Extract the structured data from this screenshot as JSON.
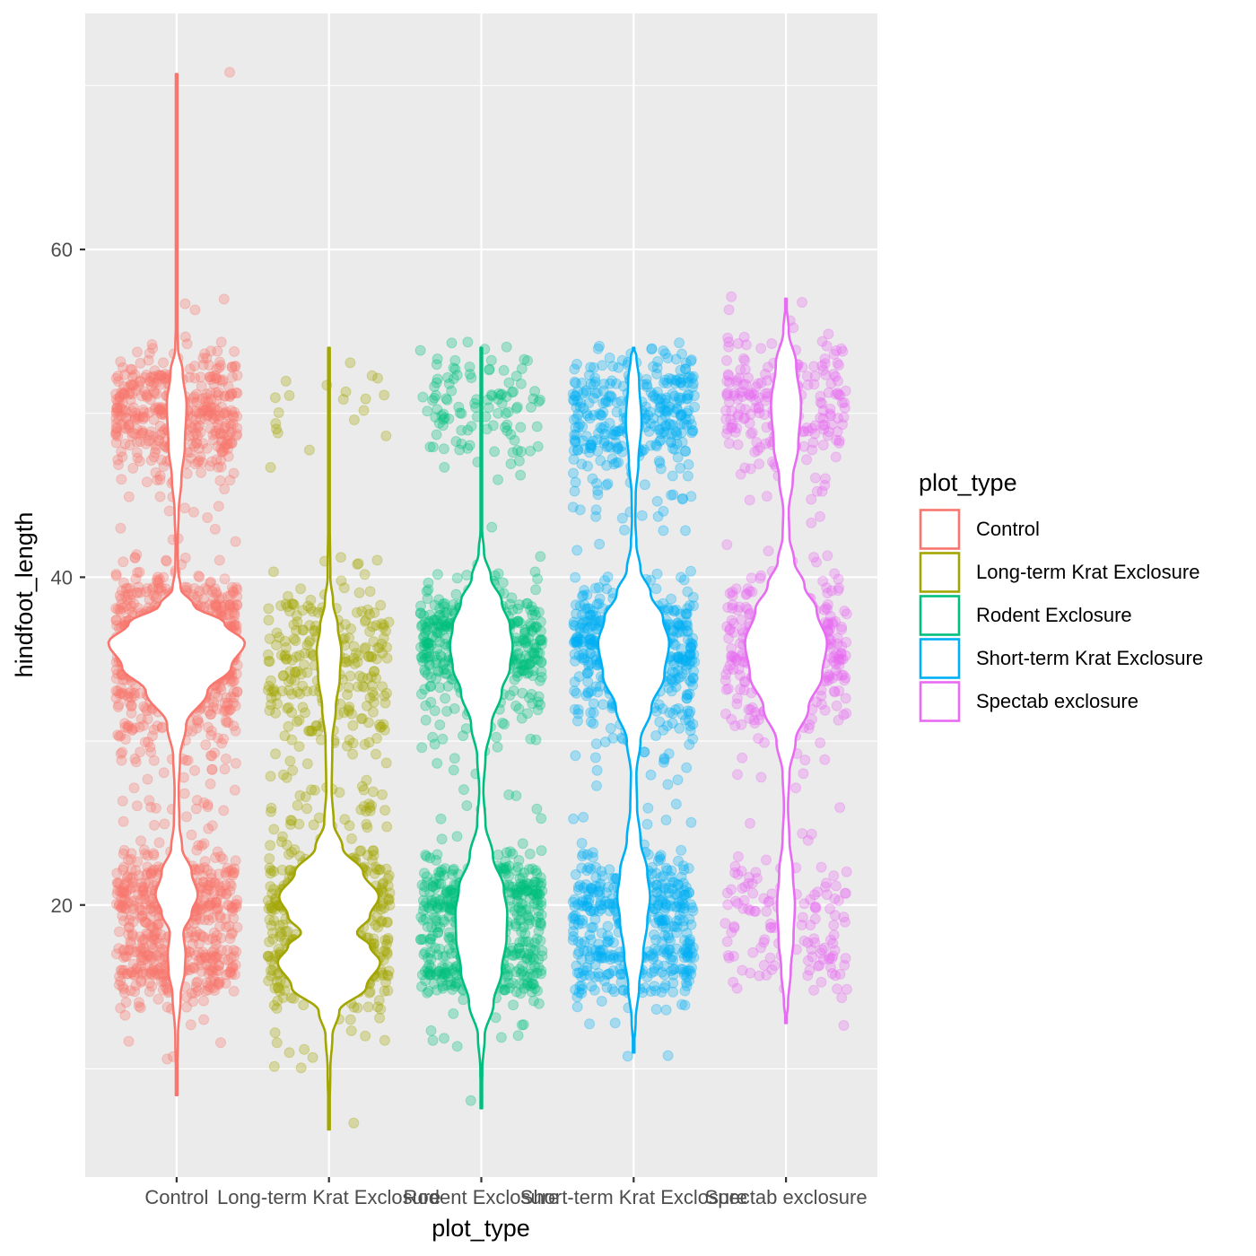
{
  "chart_data": {
    "type": "violin",
    "title": "",
    "xlabel": "plot_type",
    "ylabel": "hindfoot_length",
    "ylim": [
      3.4,
      74.4
    ],
    "yticks": [
      20,
      40,
      60
    ],
    "ytick_labels": [
      "20",
      "40",
      "60"
    ],
    "y_minor_gridlines": [
      10,
      30,
      50,
      70
    ],
    "grid": true,
    "background": "#EBEBEB",
    "categories": [
      "Control",
      "Long-term Krat Exclosure",
      "Rodent Exclosure",
      "Short-term Krat Exclosure",
      "Spectab exclosure"
    ],
    "legend": {
      "title": "plot_type",
      "placement": "right",
      "entries": [
        {
          "label": "Control",
          "color": "#F8766D"
        },
        {
          "label": "Long-term Krat Exclosure",
          "color": "#A3A500"
        },
        {
          "label": "Rodent Exclosure",
          "color": "#00BF7D"
        },
        {
          "label": "Short-term Krat Exclosure",
          "color": "#00B0F6"
        },
        {
          "label": "Spectab exclosure",
          "color": "#E76BF3"
        }
      ]
    },
    "series": [
      {
        "name": "Control",
        "color": "#F8766D",
        "min": 8.4,
        "max": 70.7,
        "density": [
          [
            8.4,
            0
          ],
          [
            12,
            0.02
          ],
          [
            14.5,
            0.06
          ],
          [
            16,
            0.12
          ],
          [
            17,
            0.13
          ],
          [
            18.3,
            0.1
          ],
          [
            19.5,
            0.22
          ],
          [
            20.6,
            0.31
          ],
          [
            22,
            0.22
          ],
          [
            23.5,
            0.08
          ],
          [
            25,
            0.04
          ],
          [
            27,
            0.03
          ],
          [
            29,
            0.05
          ],
          [
            31,
            0.14
          ],
          [
            33,
            0.45
          ],
          [
            34.5,
            0.8
          ],
          [
            36,
            1.0
          ],
          [
            37.2,
            0.7
          ],
          [
            38.3,
            0.25
          ],
          [
            39.3,
            0.06
          ],
          [
            40.5,
            0.02
          ],
          [
            42,
            0.015
          ],
          [
            44,
            0.03
          ],
          [
            46,
            0.07
          ],
          [
            48,
            0.12
          ],
          [
            50.5,
            0.145
          ],
          [
            52.5,
            0.09
          ],
          [
            54,
            0.02
          ],
          [
            55.5,
            0.01
          ],
          [
            60,
            0.005
          ],
          [
            70.7,
            0
          ]
        ],
        "points": [
          {
            "center": 50,
            "sd": 2.0,
            "n": 420
          },
          {
            "center": 36,
            "sd": 2.0,
            "n": 800
          },
          {
            "center": 32,
            "sd": 2.5,
            "n": 120
          },
          {
            "center": 20.5,
            "sd": 1.2,
            "n": 320
          },
          {
            "center": 16.5,
            "sd": 1.2,
            "n": 260
          },
          {
            "center": 27,
            "sd": 3.0,
            "n": 40
          },
          {
            "center": 44,
            "sd": 2.0,
            "n": 15
          },
          {
            "center": 12,
            "sd": 1.0,
            "n": 6
          },
          {
            "center": 70.7,
            "sd": 0.1,
            "n": 1
          },
          {
            "center": 57,
            "sd": 0.5,
            "n": 2
          }
        ]
      },
      {
        "name": "Long-term Krat Exclosure",
        "color": "#A3A500",
        "min": 6.3,
        "max": 54,
        "density": [
          [
            6.3,
            0
          ],
          [
            10,
            0.02
          ],
          [
            12,
            0.05
          ],
          [
            13.5,
            0.15
          ],
          [
            15,
            0.55
          ],
          [
            16.5,
            0.75
          ],
          [
            17.5,
            0.6
          ],
          [
            18.3,
            0.41
          ],
          [
            19.3,
            0.6
          ],
          [
            20.5,
            0.73
          ],
          [
            22,
            0.5
          ],
          [
            23.5,
            0.2
          ],
          [
            25,
            0.07
          ],
          [
            27,
            0.04
          ],
          [
            30,
            0.05
          ],
          [
            32,
            0.1
          ],
          [
            34,
            0.16
          ],
          [
            35.5,
            0.18
          ],
          [
            37,
            0.13
          ],
          [
            38.5,
            0.06
          ],
          [
            40,
            0.02
          ],
          [
            44,
            0.01
          ],
          [
            50,
            0.01
          ],
          [
            54,
            0
          ]
        ],
        "points": [
          {
            "center": 20.5,
            "sd": 1.2,
            "n": 260
          },
          {
            "center": 16.5,
            "sd": 1.2,
            "n": 300
          },
          {
            "center": 34.5,
            "sd": 2.5,
            "n": 260
          },
          {
            "center": 26,
            "sd": 2.5,
            "n": 60
          },
          {
            "center": 12,
            "sd": 1.2,
            "n": 14
          },
          {
            "center": 50,
            "sd": 2.0,
            "n": 20
          },
          {
            "center": 6.3,
            "sd": 0.1,
            "n": 1
          }
        ]
      },
      {
        "name": "Rodent Exclosure",
        "color": "#00BF7D",
        "min": 7.6,
        "max": 54,
        "density": [
          [
            7.6,
            0
          ],
          [
            10,
            0.015
          ],
          [
            12,
            0.05
          ],
          [
            14,
            0.18
          ],
          [
            16,
            0.3
          ],
          [
            18,
            0.37
          ],
          [
            19.5,
            0.38
          ],
          [
            21,
            0.33
          ],
          [
            23,
            0.17
          ],
          [
            25,
            0.06
          ],
          [
            27,
            0.03
          ],
          [
            29,
            0.06
          ],
          [
            31,
            0.15
          ],
          [
            33,
            0.3
          ],
          [
            34.5,
            0.42
          ],
          [
            35.8,
            0.46
          ],
          [
            37,
            0.42
          ],
          [
            38.5,
            0.3
          ],
          [
            40,
            0.14
          ],
          [
            41.5,
            0.04
          ],
          [
            43,
            0.01
          ],
          [
            46,
            0.005
          ],
          [
            54,
            0
          ]
        ],
        "points": [
          {
            "center": 36,
            "sd": 1.6,
            "n": 420
          },
          {
            "center": 20.5,
            "sd": 1.2,
            "n": 280
          },
          {
            "center": 16.5,
            "sd": 1.2,
            "n": 260
          },
          {
            "center": 50.5,
            "sd": 2.0,
            "n": 110
          },
          {
            "center": 31.5,
            "sd": 1.5,
            "n": 50
          },
          {
            "center": 12,
            "sd": 1.0,
            "n": 10
          },
          {
            "center": 26,
            "sd": 2.0,
            "n": 12
          },
          {
            "center": 7.6,
            "sd": 0.1,
            "n": 1
          }
        ]
      },
      {
        "name": "Short-term Krat Exclosure",
        "color": "#00B0F6",
        "min": 11,
        "max": 54,
        "density": [
          [
            11,
            0
          ],
          [
            13,
            0.03
          ],
          [
            15,
            0.08
          ],
          [
            17,
            0.14
          ],
          [
            19,
            0.2
          ],
          [
            20.5,
            0.24
          ],
          [
            22,
            0.2
          ],
          [
            24,
            0.1
          ],
          [
            26,
            0.05
          ],
          [
            28,
            0.04
          ],
          [
            30,
            0.1
          ],
          [
            32,
            0.26
          ],
          [
            34,
            0.45
          ],
          [
            36,
            0.52
          ],
          [
            37.5,
            0.43
          ],
          [
            39,
            0.25
          ],
          [
            40.5,
            0.1
          ],
          [
            42,
            0.04
          ],
          [
            43.5,
            0.025
          ],
          [
            45,
            0.03
          ],
          [
            47,
            0.07
          ],
          [
            49.5,
            0.115
          ],
          [
            52,
            0.08
          ],
          [
            53.5,
            0.04
          ],
          [
            54,
            0
          ]
        ],
        "points": [
          {
            "center": 36,
            "sd": 1.8,
            "n": 420
          },
          {
            "center": 32,
            "sd": 2.0,
            "n": 100
          },
          {
            "center": 50,
            "sd": 2.0,
            "n": 320
          },
          {
            "center": 20.5,
            "sd": 1.2,
            "n": 260
          },
          {
            "center": 16.5,
            "sd": 1.2,
            "n": 200
          },
          {
            "center": 44,
            "sd": 1.5,
            "n": 20
          },
          {
            "center": 25,
            "sd": 1.5,
            "n": 12
          },
          {
            "center": 11,
            "sd": 0.3,
            "n": 2
          }
        ]
      },
      {
        "name": "Spectab exclosure",
        "color": "#E76BF3",
        "min": 12.8,
        "max": 57,
        "density": [
          [
            12.8,
            0
          ],
          [
            14,
            0.03
          ],
          [
            16,
            0.07
          ],
          [
            18,
            0.11
          ],
          [
            20,
            0.13
          ],
          [
            22,
            0.1
          ],
          [
            24,
            0.05
          ],
          [
            26,
            0.03
          ],
          [
            28,
            0.05
          ],
          [
            30,
            0.14
          ],
          [
            32,
            0.33
          ],
          [
            34,
            0.53
          ],
          [
            36,
            0.6
          ],
          [
            38,
            0.45
          ],
          [
            39.5,
            0.27
          ],
          [
            41,
            0.12
          ],
          [
            42.5,
            0.05
          ],
          [
            44,
            0.04
          ],
          [
            46,
            0.1
          ],
          [
            48,
            0.18
          ],
          [
            50.5,
            0.22
          ],
          [
            53,
            0.15
          ],
          [
            55,
            0.04
          ],
          [
            57,
            0
          ]
        ],
        "points": [
          {
            "center": 36,
            "sd": 1.8,
            "n": 300
          },
          {
            "center": 32,
            "sd": 2.0,
            "n": 60
          },
          {
            "center": 50.5,
            "sd": 2.2,
            "n": 240
          },
          {
            "center": 20.5,
            "sd": 1.5,
            "n": 80
          },
          {
            "center": 16.5,
            "sd": 1.5,
            "n": 60
          },
          {
            "center": 42,
            "sd": 2.0,
            "n": 10
          },
          {
            "center": 26,
            "sd": 2.0,
            "n": 4
          },
          {
            "center": 56.5,
            "sd": 0.4,
            "n": 1
          }
        ]
      }
    ]
  }
}
